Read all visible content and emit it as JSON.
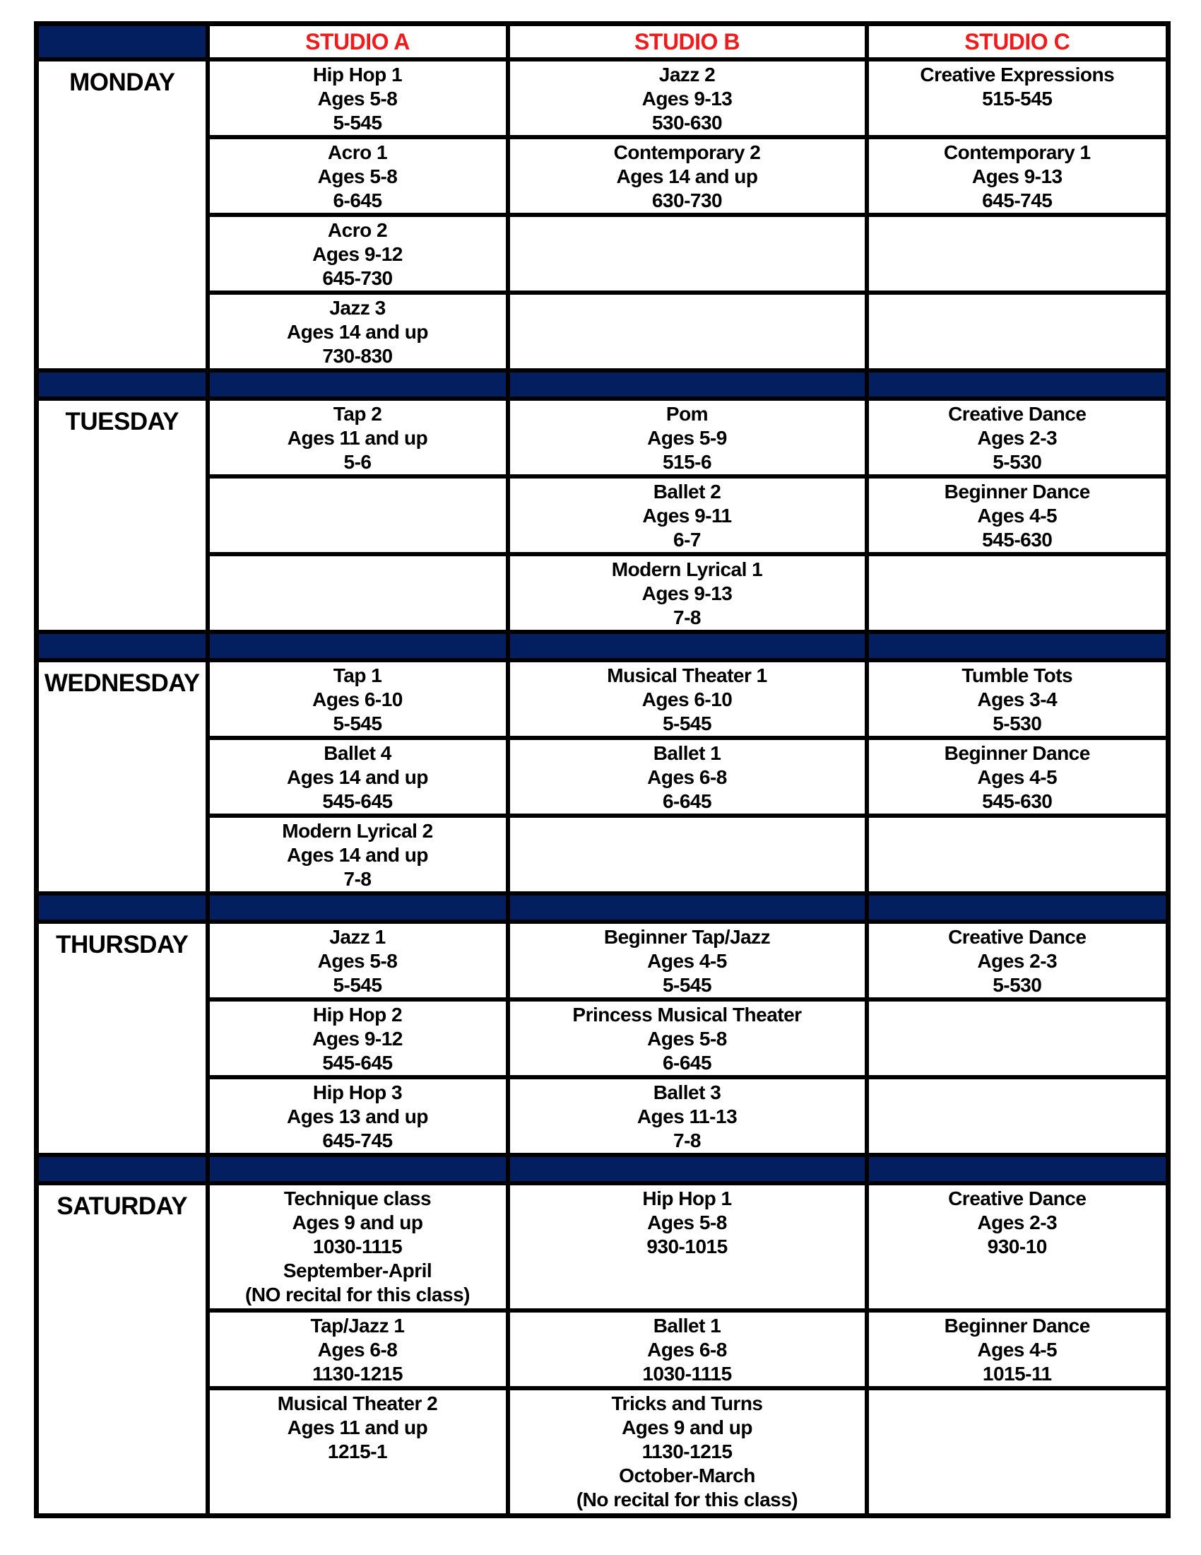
{
  "colors": {
    "navy": "#041f60",
    "red": "#ee1c1c",
    "border": "#000000",
    "text": "#000000"
  },
  "schedule": {
    "studios": [
      "STUDIO A",
      "STUDIO B",
      "STUDIO C"
    ],
    "days": [
      {
        "label": "MONDAY",
        "rows": [
          {
            "cells": [
              [
                "Hip Hop 1",
                "Ages 5-8",
                "5-545"
              ],
              [
                "Jazz 2",
                "Ages 9-13",
                "530-630"
              ],
              [
                "Creative Expressions",
                "515-545"
              ]
            ]
          },
          {
            "cells": [
              [
                "Acro 1",
                "Ages 5-8",
                "6-645"
              ],
              [
                "Contemporary 2",
                "Ages 14 and up",
                "630-730"
              ],
              [
                "Contemporary 1",
                "Ages 9-13",
                "645-745"
              ]
            ]
          },
          {
            "cells": [
              [
                "Acro 2",
                "Ages 9-12",
                "645-730"
              ],
              [],
              []
            ]
          },
          {
            "cells": [
              [
                "Jazz 3",
                "Ages 14 and up",
                "730-830"
              ],
              [],
              []
            ]
          }
        ]
      },
      {
        "label": "TUESDAY",
        "rows": [
          {
            "cells": [
              [
                "Tap 2",
                "Ages 11 and up",
                "5-6"
              ],
              [
                "Pom",
                "Ages 5-9",
                "515-6"
              ],
              [
                "Creative Dance",
                "Ages 2-3",
                "5-530"
              ]
            ]
          },
          {
            "cells": [
              [],
              [
                "Ballet 2",
                "Ages 9-11",
                "6-7"
              ],
              [
                "Beginner Dance",
                "Ages 4-5",
                "545-630"
              ]
            ]
          },
          {
            "cells": [
              [],
              [
                "Modern Lyrical 1",
                "Ages 9-13",
                "7-8"
              ],
              []
            ]
          }
        ]
      },
      {
        "label": "WEDNESDAY",
        "rows": [
          {
            "cells": [
              [
                "Tap 1",
                "Ages 6-10",
                "5-545"
              ],
              [
                "Musical Theater 1",
                "Ages 6-10",
                "5-545"
              ],
              [
                "Tumble Tots",
                "Ages 3-4",
                "5-530"
              ]
            ]
          },
          {
            "cells": [
              [
                "Ballet 4",
                "Ages 14 and up",
                "545-645"
              ],
              [
                "Ballet 1",
                "Ages 6-8",
                "6-645"
              ],
              [
                "Beginner Dance",
                "Ages 4-5",
                "545-630"
              ]
            ]
          },
          {
            "cells": [
              [
                "Modern Lyrical 2",
                "Ages 14 and up",
                "7-8"
              ],
              [],
              []
            ]
          }
        ]
      },
      {
        "label": "THURSDAY",
        "rows": [
          {
            "cells": [
              [
                "Jazz 1",
                "Ages 5-8",
                "5-545"
              ],
              [
                "Beginner Tap/Jazz",
                "Ages 4-5",
                "5-545"
              ],
              [
                "Creative Dance",
                "Ages 2-3",
                "5-530"
              ]
            ]
          },
          {
            "cells": [
              [
                "Hip Hop 2",
                "Ages 9-12",
                "545-645"
              ],
              [
                "Princess Musical Theater",
                "Ages 5-8",
                "6-645"
              ],
              []
            ]
          },
          {
            "cells": [
              [
                "Hip Hop 3",
                "Ages 13 and up",
                "645-745"
              ],
              [
                "Ballet 3",
                "Ages 11-13",
                "7-8"
              ],
              []
            ]
          }
        ]
      },
      {
        "label": "SATURDAY",
        "rows": [
          {
            "cells": [
              [
                "Technique class",
                "Ages 9 and up",
                "1030-1115",
                "September-April",
                "(NO recital for this class)"
              ],
              [
                "Hip Hop 1",
                "Ages 5-8",
                "930-1015"
              ],
              [
                "Creative Dance",
                "Ages 2-3",
                "930-10"
              ]
            ]
          },
          {
            "cells": [
              [
                "Tap/Jazz 1",
                "Ages 6-8",
                "1130-1215"
              ],
              [
                "Ballet 1",
                "Ages 6-8",
                "1030-1115"
              ],
              [
                "Beginner Dance",
                "Ages 4-5",
                "1015-11"
              ]
            ]
          },
          {
            "cells": [
              [
                "Musical Theater 2",
                "Ages 11 and up",
                "1215-1"
              ],
              [
                "Tricks and Turns",
                "Ages 9 and up",
                "1130-1215",
                "October-March",
                "(No recital for this class)"
              ],
              []
            ]
          }
        ]
      }
    ]
  }
}
